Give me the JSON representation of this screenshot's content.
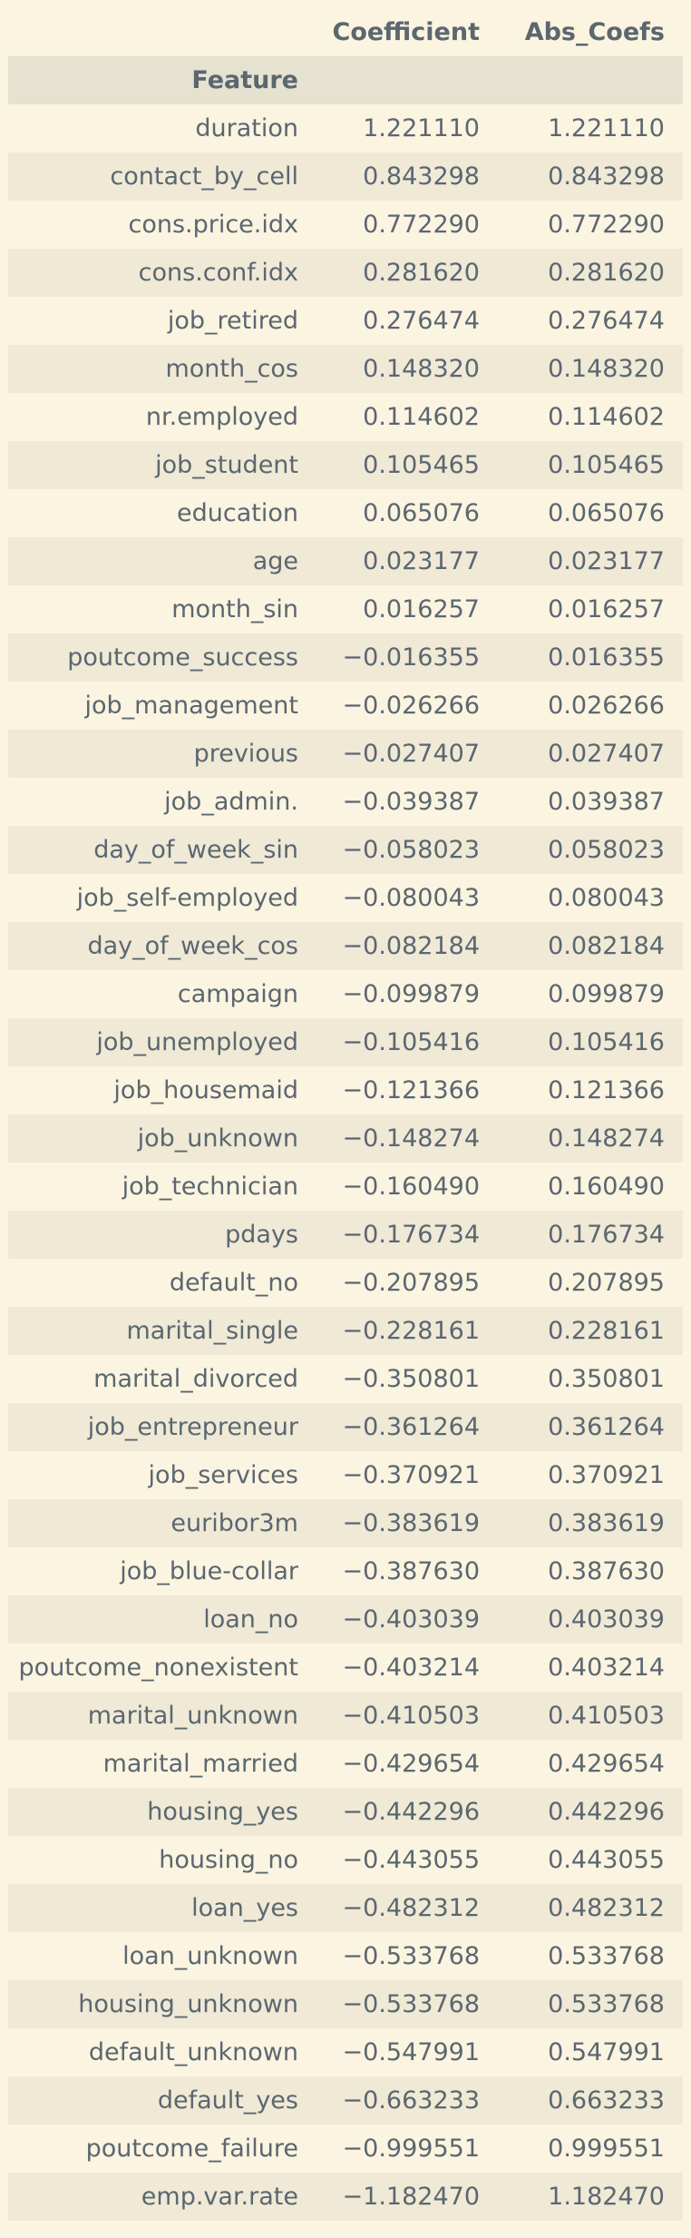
{
  "table": {
    "columns": [
      "Coefficient",
      "Abs_Coefs"
    ],
    "index_name": "Feature",
    "rows": [
      {
        "feature": "duration",
        "coefficient": "1.221110",
        "abs_coefs": "1.221110"
      },
      {
        "feature": "contact_by_cell",
        "coefficient": "0.843298",
        "abs_coefs": "0.843298"
      },
      {
        "feature": "cons.price.idx",
        "coefficient": "0.772290",
        "abs_coefs": "0.772290"
      },
      {
        "feature": "cons.conf.idx",
        "coefficient": "0.281620",
        "abs_coefs": "0.281620"
      },
      {
        "feature": "job_retired",
        "coefficient": "0.276474",
        "abs_coefs": "0.276474"
      },
      {
        "feature": "month_cos",
        "coefficient": "0.148320",
        "abs_coefs": "0.148320"
      },
      {
        "feature": "nr.employed",
        "coefficient": "0.114602",
        "abs_coefs": "0.114602"
      },
      {
        "feature": "job_student",
        "coefficient": "0.105465",
        "abs_coefs": "0.105465"
      },
      {
        "feature": "education",
        "coefficient": "0.065076",
        "abs_coefs": "0.065076"
      },
      {
        "feature": "age",
        "coefficient": "0.023177",
        "abs_coefs": "0.023177"
      },
      {
        "feature": "month_sin",
        "coefficient": "0.016257",
        "abs_coefs": "0.016257"
      },
      {
        "feature": "poutcome_success",
        "coefficient": "-0.016355",
        "abs_coefs": "0.016355"
      },
      {
        "feature": "job_management",
        "coefficient": "-0.026266",
        "abs_coefs": "0.026266"
      },
      {
        "feature": "previous",
        "coefficient": "-0.027407",
        "abs_coefs": "0.027407"
      },
      {
        "feature": "job_admin.",
        "coefficient": "-0.039387",
        "abs_coefs": "0.039387"
      },
      {
        "feature": "day_of_week_sin",
        "coefficient": "-0.058023",
        "abs_coefs": "0.058023"
      },
      {
        "feature": "job_self-employed",
        "coefficient": "-0.080043",
        "abs_coefs": "0.080043"
      },
      {
        "feature": "day_of_week_cos",
        "coefficient": "-0.082184",
        "abs_coefs": "0.082184"
      },
      {
        "feature": "campaign",
        "coefficient": "-0.099879",
        "abs_coefs": "0.099879"
      },
      {
        "feature": "job_unemployed",
        "coefficient": "-0.105416",
        "abs_coefs": "0.105416"
      },
      {
        "feature": "job_housemaid",
        "coefficient": "-0.121366",
        "abs_coefs": "0.121366"
      },
      {
        "feature": "job_unknown",
        "coefficient": "-0.148274",
        "abs_coefs": "0.148274"
      },
      {
        "feature": "job_technician",
        "coefficient": "-0.160490",
        "abs_coefs": "0.160490"
      },
      {
        "feature": "pdays",
        "coefficient": "-0.176734",
        "abs_coefs": "0.176734"
      },
      {
        "feature": "default_no",
        "coefficient": "-0.207895",
        "abs_coefs": "0.207895"
      },
      {
        "feature": "marital_single",
        "coefficient": "-0.228161",
        "abs_coefs": "0.228161"
      },
      {
        "feature": "marital_divorced",
        "coefficient": "-0.350801",
        "abs_coefs": "0.350801"
      },
      {
        "feature": "job_entrepreneur",
        "coefficient": "-0.361264",
        "abs_coefs": "0.361264"
      },
      {
        "feature": "job_services",
        "coefficient": "-0.370921",
        "abs_coefs": "0.370921"
      },
      {
        "feature": "euribor3m",
        "coefficient": "-0.383619",
        "abs_coefs": "0.383619"
      },
      {
        "feature": "job_blue-collar",
        "coefficient": "-0.387630",
        "abs_coefs": "0.387630"
      },
      {
        "feature": "loan_no",
        "coefficient": "-0.403039",
        "abs_coefs": "0.403039"
      },
      {
        "feature": "poutcome_nonexistent",
        "coefficient": "-0.403214",
        "abs_coefs": "0.403214"
      },
      {
        "feature": "marital_unknown",
        "coefficient": "-0.410503",
        "abs_coefs": "0.410503"
      },
      {
        "feature": "marital_married",
        "coefficient": "-0.429654",
        "abs_coefs": "0.429654"
      },
      {
        "feature": "housing_yes",
        "coefficient": "-0.442296",
        "abs_coefs": "0.442296"
      },
      {
        "feature": "housing_no",
        "coefficient": "-0.443055",
        "abs_coefs": "0.443055"
      },
      {
        "feature": "loan_yes",
        "coefficient": "-0.482312",
        "abs_coefs": "0.482312"
      },
      {
        "feature": "loan_unknown",
        "coefficient": "-0.533768",
        "abs_coefs": "0.533768"
      },
      {
        "feature": "housing_unknown",
        "coefficient": "-0.533768",
        "abs_coefs": "0.533768"
      },
      {
        "feature": "default_unknown",
        "coefficient": "-0.547991",
        "abs_coefs": "0.547991"
      },
      {
        "feature": "default_yes",
        "coefficient": "-0.663233",
        "abs_coefs": "0.663233"
      },
      {
        "feature": "poutcome_failure",
        "coefficient": "-0.999551",
        "abs_coefs": "0.999551"
      },
      {
        "feature": "emp.var.rate",
        "coefficient": "-1.182470",
        "abs_coefs": "1.182470"
      }
    ]
  },
  "colors": {
    "background": "#fbf4e0",
    "row_stripe": "#efe9d6",
    "index_header_band": "#e6e2d0",
    "text": "#5b6770"
  }
}
